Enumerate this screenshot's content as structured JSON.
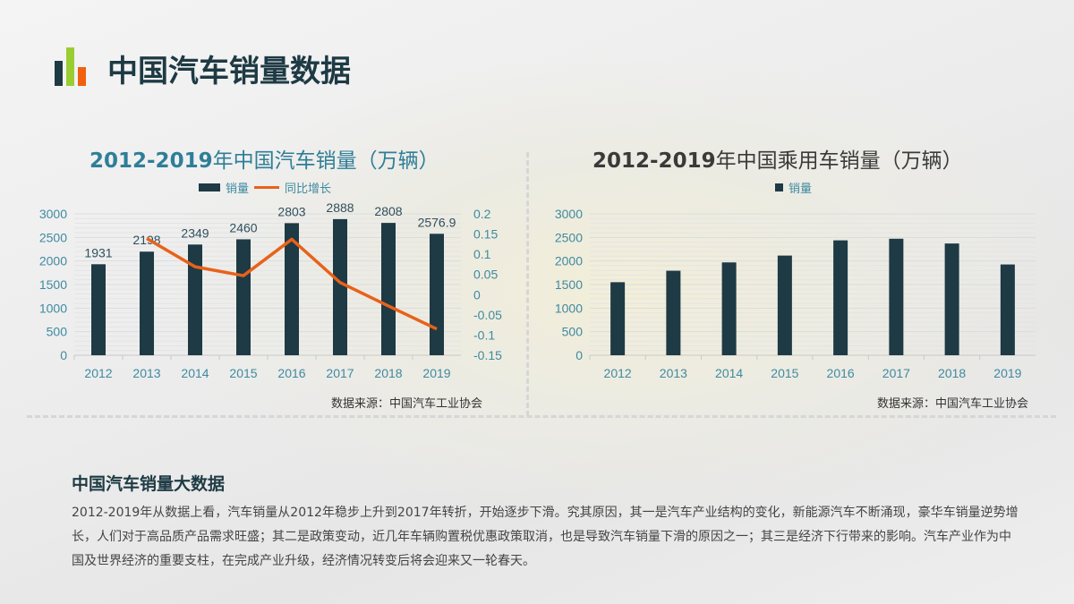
{
  "page": {
    "title": "中国汽车销量数据"
  },
  "logo": {
    "colors": [
      "#1e3a44",
      "#9acd32",
      "#f06010"
    ]
  },
  "colors": {
    "bar": "#1e3a44",
    "line": "#e8621a",
    "axis": "#3f8aa0",
    "title_left": "#2f7e98",
    "title_right": "#3a3a3a"
  },
  "chart_data": [
    {
      "type": "bar+line",
      "title_bold": "2012-2019",
      "title_rest": "年中国汽车销量（万辆）",
      "legend": [
        "销量",
        "同比增长"
      ],
      "categories": [
        "2012",
        "2013",
        "2014",
        "2015",
        "2016",
        "2017",
        "2018",
        "2019"
      ],
      "series": [
        {
          "name": "销量",
          "type": "bar",
          "values": [
            1931,
            2198,
            2349,
            2460,
            2803,
            2888,
            2808,
            2576.9
          ],
          "labels": [
            "1931",
            "2198",
            "2349",
            "2460",
            "2803",
            "2888",
            "2808",
            "2576.9"
          ]
        },
        {
          "name": "同比增长",
          "type": "line",
          "axis": "right",
          "values": [
            null,
            0.139,
            0.069,
            0.047,
            0.137,
            0.03,
            -0.028,
            -0.085
          ]
        }
      ],
      "ylim": [
        0,
        3000
      ],
      "yticks": [
        "0",
        "500",
        "1000",
        "1500",
        "2000",
        "2500",
        "3000"
      ],
      "y2lim": [
        -0.15,
        0.2
      ],
      "y2ticks": [
        "-0.15",
        "-0.1",
        "-0.05",
        "0",
        "0.05",
        "0.1",
        "0.15",
        "0.2"
      ],
      "grid": true,
      "legend_position": "top",
      "source": "数据来源：中国汽车工业协会"
    },
    {
      "type": "bar",
      "title_bold": "2012-2019",
      "title_rest": "年中国乘用车销量（万辆）",
      "legend": [
        "销量"
      ],
      "categories": [
        "2012",
        "2013",
        "2014",
        "2015",
        "2016",
        "2017",
        "2018",
        "2019"
      ],
      "series": [
        {
          "name": "销量",
          "values": [
            1550,
            1793,
            1970,
            2115,
            2438,
            2472,
            2371,
            1926
          ]
        }
      ],
      "ylim": [
        0,
        3000
      ],
      "yticks": [
        "0",
        "500",
        "1000",
        "1500",
        "2000",
        "2500",
        "3000"
      ],
      "grid": true,
      "legend_position": "top",
      "source": "数据来源：中国汽车工业协会"
    }
  ],
  "summary": {
    "heading": "中国汽车销量大数据",
    "text": "2012-2019年从数据上看，汽车销量从2012年稳步上升到2017年转折，开始逐步下滑。究其原因，其一是汽车产业结构的变化，新能源汽车不断涌现，豪华车销量逆势增长，人们对于高品质产品需求旺盛；其二是政策变动，近几年车辆购置税优惠政策取消，也是导致汽车销量下滑的原因之一；其三是经济下行带来的影响。汽车产业作为中国及世界经济的重要支柱，在完成产业升级，经济情况转变后将会迎来又一轮春天。"
  }
}
